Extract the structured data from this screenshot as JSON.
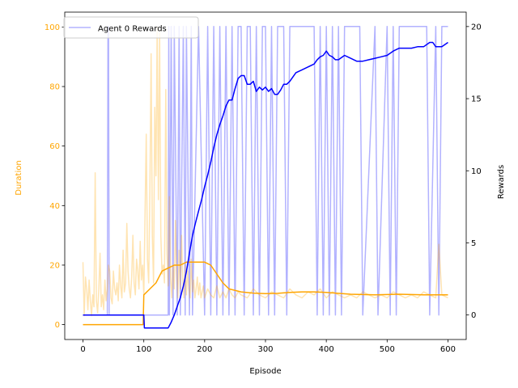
{
  "chart_data": {
    "type": "line",
    "xlabel": "Episode",
    "ylabel_left": "Duration",
    "ylabel_right": "Rewards",
    "x_ticks": [
      0,
      100,
      200,
      300,
      400,
      500,
      600
    ],
    "y_left_ticks": [
      0,
      20,
      40,
      60,
      80,
      100
    ],
    "y_right_ticks": [
      0,
      5,
      10,
      15,
      20
    ],
    "xlim": [
      -30,
      630
    ],
    "ylim_left": [
      -5,
      105
    ],
    "ylim_right": [
      -1.7,
      21
    ],
    "legend": {
      "position": "top-left",
      "entries": [
        "Agent 0 Rewards"
      ]
    },
    "colors": {
      "duration": "#ffa500",
      "duration_avg": "#ffa500",
      "rewards": "#0000ff",
      "rewards_avg": "#0000ff"
    },
    "series": [
      {
        "name": "Agent 0 Rewards",
        "axis": "right",
        "kind": "raw",
        "x": [
          0,
          40,
          41,
          42,
          43,
          100,
          101,
          140,
          141,
          142,
          145,
          148,
          150,
          155,
          158,
          160,
          165,
          168,
          170,
          175,
          178,
          180,
          190,
          200,
          205,
          210,
          215,
          220,
          225,
          230,
          235,
          240,
          245,
          250,
          255,
          260,
          265,
          270,
          275,
          280,
          285,
          290,
          295,
          300,
          305,
          310,
          315,
          320,
          330,
          335,
          340,
          345,
          380,
          385,
          390,
          395,
          400,
          405,
          410,
          415,
          420,
          425,
          430,
          455,
          460,
          480,
          485,
          500,
          505,
          510,
          515,
          520,
          525,
          565,
          570,
          580,
          585,
          590,
          600
        ],
        "values": [
          0,
          0,
          20,
          20,
          0,
          0,
          0,
          0,
          20,
          0,
          20,
          0,
          20,
          0,
          20,
          0,
          20,
          0,
          20,
          0,
          20,
          0,
          20,
          0,
          20,
          0,
          20,
          0,
          20,
          0,
          20,
          0,
          20,
          0,
          20,
          20,
          0,
          20,
          20,
          0,
          20,
          0,
          20,
          20,
          0,
          20,
          0,
          20,
          20,
          0,
          20,
          20,
          20,
          0,
          20,
          0,
          20,
          0,
          20,
          0,
          20,
          0,
          20,
          20,
          0,
          20,
          0,
          20,
          0,
          20,
          0,
          20,
          20,
          20,
          0,
          20,
          0,
          20,
          20
        ]
      },
      {
        "name": "",
        "axis": "right",
        "kind": "moving-average",
        "x": [
          0,
          100,
          101,
          140,
          145,
          150,
          155,
          160,
          165,
          170,
          175,
          180,
          185,
          190,
          195,
          200,
          205,
          210,
          215,
          220,
          225,
          230,
          235,
          240,
          245,
          250,
          255,
          260,
          265,
          270,
          275,
          280,
          285,
          290,
          295,
          300,
          305,
          310,
          315,
          320,
          325,
          330,
          335,
          340,
          345,
          350,
          360,
          370,
          380,
          385,
          390,
          395,
          400,
          405,
          410,
          415,
          420,
          430,
          440,
          450,
          460,
          470,
          480,
          490,
          500,
          510,
          520,
          530,
          540,
          550,
          560,
          570,
          575,
          580,
          590,
          600
        ],
        "values": [
          0,
          0,
          -0.9,
          -0.9,
          -0.5,
          0,
          0.6,
          1.2,
          2.0,
          3.0,
          4.3,
          5.5,
          6.4,
          7.2,
          8.0,
          8.9,
          9.7,
          10.6,
          11.6,
          12.5,
          13.2,
          13.8,
          14.5,
          14.9,
          14.9,
          15.7,
          16.4,
          16.6,
          16.6,
          16.0,
          16.0,
          16.2,
          15.5,
          15.8,
          15.6,
          15.8,
          15.5,
          15.7,
          15.3,
          15.3,
          15.6,
          16.0,
          16.0,
          16.2,
          16.5,
          16.8,
          17.0,
          17.2,
          17.4,
          17.7,
          17.9,
          18.0,
          18.3,
          18.0,
          17.9,
          17.7,
          17.7,
          18.0,
          17.8,
          17.6,
          17.6,
          17.7,
          17.8,
          17.9,
          18.0,
          18.3,
          18.5,
          18.5,
          18.5,
          18.6,
          18.6,
          18.9,
          18.9,
          18.6,
          18.6,
          18.9
        ]
      },
      {
        "name": "",
        "axis": "left",
        "kind": "raw",
        "x": [
          0,
          2,
          4,
          6,
          8,
          10,
          12,
          14,
          16,
          18,
          20,
          22,
          24,
          26,
          28,
          30,
          32,
          34,
          36,
          38,
          40,
          42,
          44,
          46,
          48,
          50,
          52,
          54,
          56,
          58,
          60,
          62,
          64,
          66,
          68,
          70,
          72,
          74,
          76,
          78,
          80,
          82,
          84,
          86,
          88,
          90,
          92,
          94,
          96,
          98,
          100,
          102,
          104,
          106,
          108,
          110,
          112,
          114,
          116,
          118,
          120,
          122,
          124,
          126,
          128,
          130,
          132,
          134,
          136,
          138,
          140,
          142,
          144,
          146,
          148,
          150,
          152,
          154,
          156,
          158,
          160,
          162,
          164,
          166,
          168,
          170,
          172,
          174,
          176,
          178,
          180,
          182,
          184,
          186,
          188,
          190,
          192,
          194,
          196,
          198,
          200,
          205,
          210,
          215,
          220,
          225,
          230,
          235,
          240,
          245,
          250,
          255,
          260,
          270,
          280,
          290,
          300,
          310,
          320,
          330,
          340,
          350,
          360,
          370,
          380,
          390,
          400,
          410,
          420,
          430,
          440,
          450,
          460,
          470,
          480,
          490,
          500,
          510,
          520,
          530,
          540,
          550,
          560,
          570,
          580,
          585,
          590,
          600
        ],
        "values": [
          21,
          3,
          16,
          12,
          5,
          15,
          8,
          3,
          10,
          6,
          51,
          8,
          4,
          12,
          24,
          6,
          10,
          5,
          15,
          8,
          12,
          20,
          18,
          9,
          7,
          18,
          12,
          10,
          14,
          8,
          20,
          13,
          9,
          25,
          11,
          14,
          34,
          18,
          12,
          9,
          16,
          30,
          14,
          10,
          22,
          18,
          12,
          28,
          15,
          20,
          10,
          37,
          64,
          22,
          14,
          45,
          91,
          30,
          14,
          73,
          50,
          100,
          42,
          98,
          30,
          17,
          20,
          14,
          79,
          24,
          13,
          43,
          16,
          9,
          20,
          12,
          35,
          18,
          9,
          25,
          12,
          30,
          15,
          9,
          20,
          10,
          18,
          12,
          9,
          22,
          11,
          15,
          9,
          12,
          16,
          10,
          14,
          9,
          11,
          13,
          9,
          12,
          10,
          9,
          13,
          9,
          11,
          9,
          12,
          10,
          9,
          11,
          10,
          9,
          12,
          10,
          9,
          11,
          10,
          9,
          12,
          10,
          9,
          11,
          10,
          12,
          9,
          11,
          10,
          9,
          10,
          9,
          11,
          10,
          9,
          10,
          9,
          11,
          10,
          9,
          10,
          9,
          11,
          10,
          9,
          27,
          10,
          9
        ]
      },
      {
        "name": "",
        "axis": "left",
        "kind": "moving-average",
        "x": [
          0,
          99,
          100,
          110,
          120,
          130,
          140,
          150,
          160,
          170,
          180,
          190,
          200,
          210,
          220,
          230,
          240,
          260,
          280,
          300,
          320,
          340,
          360,
          380,
          400,
          420,
          440,
          460,
          480,
          500,
          520,
          540,
          560,
          580,
          600
        ],
        "values": [
          0,
          0,
          10,
          12,
          14,
          18,
          19,
          20,
          20,
          21,
          21,
          21,
          21,
          20,
          17,
          14,
          12,
          11,
          10.6,
          10.4,
          10.5,
          10.8,
          11,
          11,
          10.8,
          10.5,
          10.2,
          10.1,
          10,
          10.1,
          10.2,
          10.1,
          10,
          10,
          10
        ]
      }
    ]
  }
}
